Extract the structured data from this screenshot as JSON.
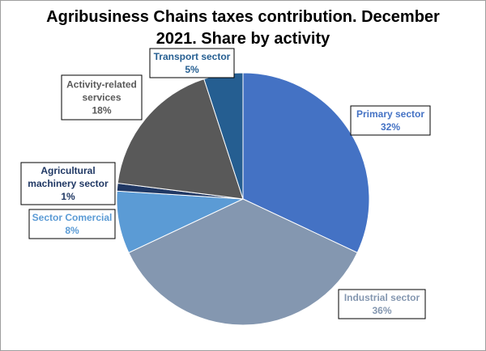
{
  "title_line1": "Agribusiness Chains taxes contribution. December",
  "title_line2": "2021. Share by activity",
  "chart_data": {
    "type": "pie",
    "title": "Agribusiness Chains taxes contribution. December 2021. Share by activity",
    "slices": [
      {
        "name": "Primary sector",
        "value": 32,
        "value_label": "32%",
        "color": "#4472C4",
        "label_color": "#4472C4"
      },
      {
        "name": "Industrial sector",
        "value": 36,
        "value_label": "36%",
        "color": "#8497B0",
        "label_color": "#8497B0"
      },
      {
        "name": "Sector Comercial",
        "value": 8,
        "value_label": "8%",
        "color": "#5B9BD5",
        "label_color": "#5B9BD5"
      },
      {
        "name": "Agricultural machinery sector",
        "value": 1,
        "value_label": "1%",
        "color": "#203864",
        "label_color": "#203864"
      },
      {
        "name": "Activity-related services",
        "value": 18,
        "value_label": "18%",
        "color": "#595959",
        "label_color": "#595959"
      },
      {
        "name": "Transport sector",
        "value": 5,
        "value_label": "5%",
        "color": "#255E91",
        "label_color": "#255E91"
      }
    ]
  }
}
